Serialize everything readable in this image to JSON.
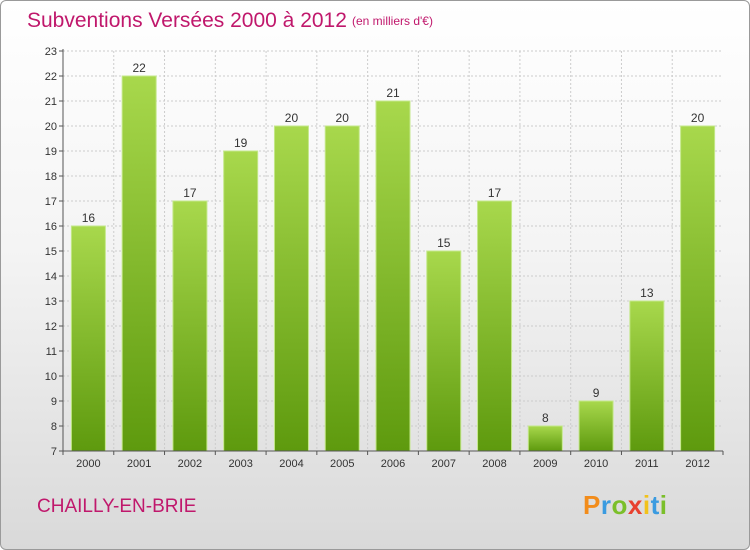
{
  "header": {
    "title": "Subventions Versées 2000 à 2012",
    "subtitle": "(en milliers d'€)"
  },
  "footer": {
    "commune": "CHAILLY-EN-BRIE",
    "logo_text": "Proxiti",
    "logo_colors": [
      "#f28c1a",
      "#3a9be0",
      "#7bbf2a",
      "#e8412f",
      "#f2c21a",
      "#3a9be0",
      "#7bbf2a"
    ]
  },
  "colors": {
    "title": "#c0186c",
    "bar_light": "#a8d84c",
    "bar_dark": "#5e9a0e",
    "grid": "#cccccc"
  },
  "chart_data": {
    "type": "bar",
    "title": "Subventions Versées 2000 à 2012",
    "subtitle": "(en milliers d'€)",
    "categories": [
      "2000",
      "2001",
      "2002",
      "2003",
      "2004",
      "2005",
      "2006",
      "2007",
      "2008",
      "2009",
      "2010",
      "2011",
      "2012"
    ],
    "values": [
      16,
      22,
      17,
      19,
      20,
      20,
      21,
      15,
      17,
      8,
      9,
      13,
      20
    ],
    "ylim": [
      7,
      23
    ],
    "yticks": [
      7,
      8,
      9,
      10,
      11,
      12,
      13,
      14,
      15,
      16,
      17,
      18,
      19,
      20,
      21,
      22,
      23
    ],
    "grid": true,
    "xlabel": "",
    "ylabel": ""
  }
}
